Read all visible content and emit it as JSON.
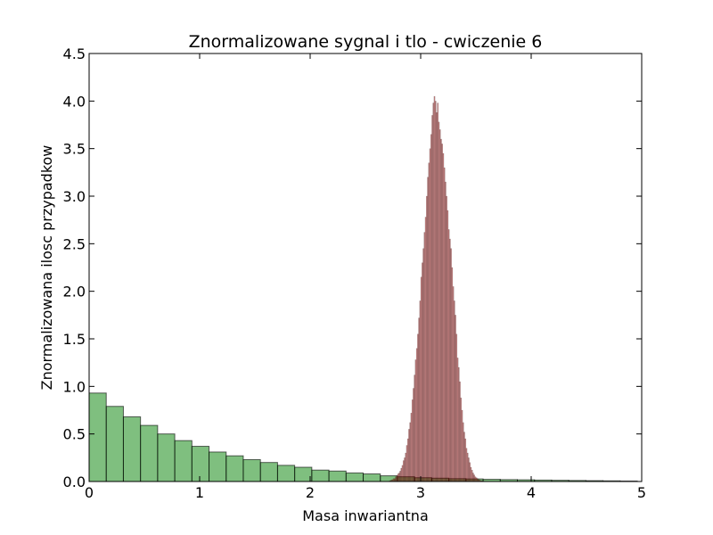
{
  "chart_data": {
    "type": "bar",
    "title": "Znormalizowane sygnal i tlo - cwiczenie 6",
    "xlabel": "Masa inwariantna",
    "ylabel": "Znormalizowana ilosc przypadkow",
    "xlim": [
      0,
      5
    ],
    "ylim": [
      0,
      4.5
    ],
    "xticks": [
      0,
      1,
      2,
      3,
      4,
      5
    ],
    "xtick_labels": [
      "0",
      "1",
      "2",
      "3",
      "4",
      "5"
    ],
    "yticks": [
      0,
      0.5,
      1.0,
      1.5,
      2.0,
      2.5,
      3.0,
      3.5,
      4.0,
      4.5
    ],
    "ytick_labels": [
      "0.0",
      "0.5",
      "1.0",
      "1.5",
      "2.0",
      "2.5",
      "3.0",
      "3.5",
      "4.0",
      "4.5"
    ],
    "grid": false,
    "series": [
      {
        "kind": "histogram",
        "color": "#008000",
        "alpha": 0.5,
        "bin_width": 0.155,
        "bin_start": 0.0,
        "values": [
          0.93,
          0.79,
          0.68,
          0.59,
          0.5,
          0.43,
          0.37,
          0.31,
          0.27,
          0.23,
          0.2,
          0.17,
          0.15,
          0.12,
          0.11,
          0.09,
          0.08,
          0.06,
          0.05,
          0.04,
          0.035,
          0.03,
          0.027,
          0.023,
          0.02,
          0.018,
          0.015,
          0.013,
          0.011,
          0.009,
          0.007,
          0.005
        ]
      },
      {
        "kind": "histogram",
        "color": "#800000",
        "alpha": 0.5,
        "bin_width": 0.01,
        "bin_start": 2.7,
        "values": [
          0.0,
          0.005,
          0.01,
          0.015,
          0.02,
          0.03,
          0.03,
          0.05,
          0.06,
          0.08,
          0.09,
          0.11,
          0.14,
          0.17,
          0.22,
          0.25,
          0.3,
          0.38,
          0.45,
          0.55,
          0.62,
          0.72,
          0.86,
          0.98,
          1.12,
          1.28,
          1.4,
          1.55,
          1.72,
          1.9,
          2.15,
          2.3,
          2.45,
          2.62,
          2.78,
          3.0,
          3.2,
          3.35,
          3.5,
          3.65,
          3.85,
          3.98,
          4.05,
          4.0,
          3.88,
          3.98,
          3.78,
          3.7,
          3.6,
          3.55,
          3.45,
          3.3,
          3.15,
          3.0,
          2.85,
          2.65,
          2.55,
          2.45,
          2.25,
          2.05,
          1.9,
          1.75,
          1.55,
          1.3,
          1.2,
          1.05,
          0.88,
          0.75,
          0.62,
          0.52,
          0.45,
          0.35,
          0.3,
          0.25,
          0.2,
          0.15,
          0.12,
          0.09,
          0.07,
          0.05,
          0.04,
          0.03,
          0.02,
          0.015,
          0.01,
          0.008,
          0.005,
          0.003,
          0.002,
          0.001
        ]
      }
    ]
  }
}
